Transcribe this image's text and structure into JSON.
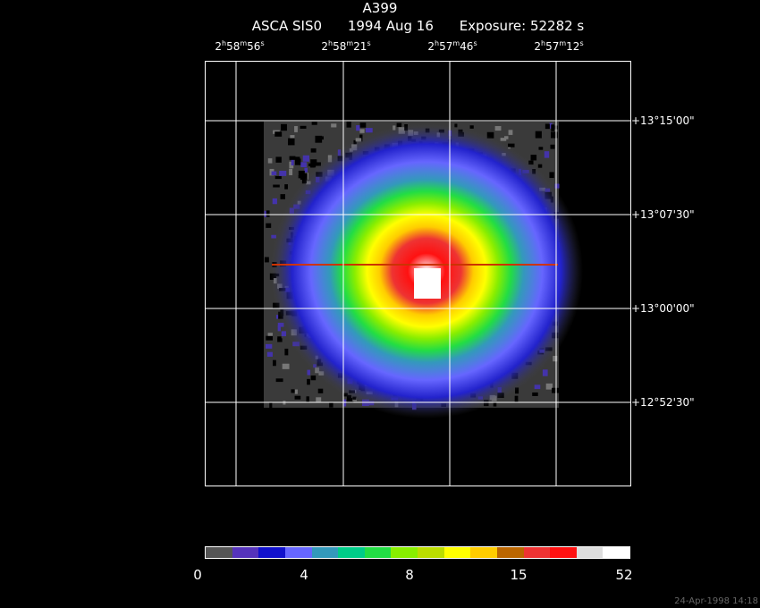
{
  "header": {
    "title": "A399",
    "subtitle_parts": [
      "ASCA SIS0",
      "1994 Aug 16",
      "Exposure: 52282 s"
    ]
  },
  "ra_labels": [
    {
      "h": "2",
      "m": "58",
      "s": "56"
    },
    {
      "h": "2",
      "m": "58",
      "s": "21"
    },
    {
      "h": "2",
      "m": "57",
      "s": "46"
    },
    {
      "h": "2",
      "m": "57",
      "s": "12"
    }
  ],
  "dec_labels": [
    "+13°15'00\"",
    "+13°07'30\"",
    "+13°00'00\"",
    "+12°52'30\""
  ],
  "colorbar": {
    "colors": [
      "#555555",
      "#5533bb",
      "#1111cc",
      "#6666ff",
      "#3399bb",
      "#00cc88",
      "#22dd44",
      "#88ee00",
      "#bbdd00",
      "#ffff00",
      "#ffcc00",
      "#bb6600",
      "#ee3333",
      "#ff1111",
      "#dddddd",
      "#ffffff"
    ],
    "ticks": [
      "0",
      "4",
      "8",
      "15",
      "52"
    ]
  },
  "timestamp": "24-Apr-1998 14:18"
}
